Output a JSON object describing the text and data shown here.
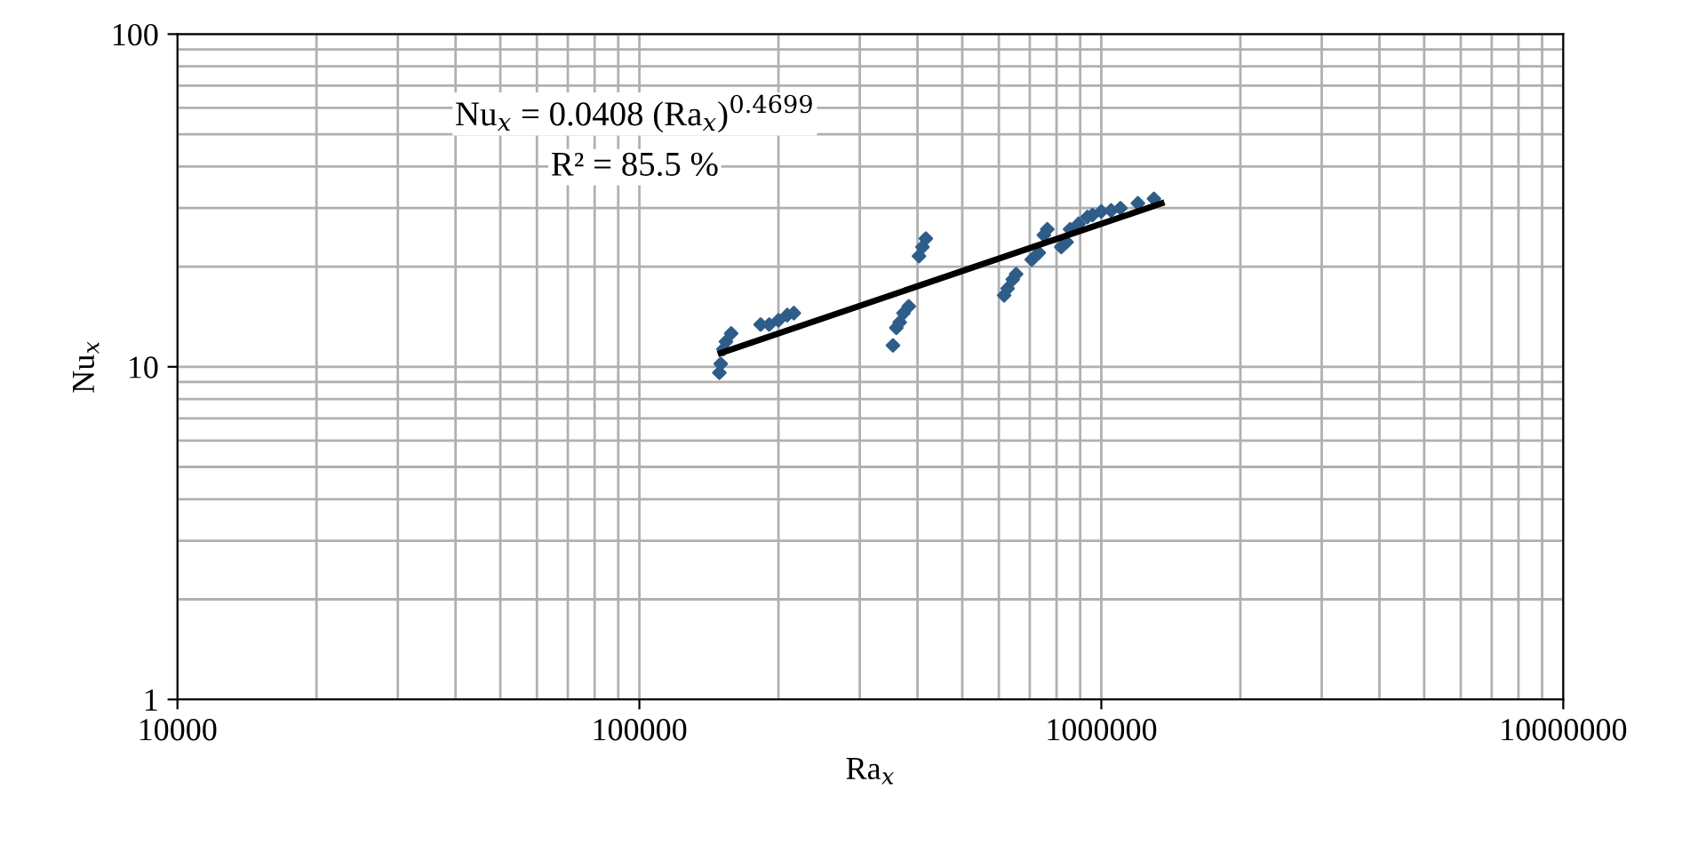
{
  "chart_data": {
    "type": "scatter",
    "xlabel": "Ra$_{x}$",
    "ylabel": "Nu$_{x}$",
    "log": "xy",
    "grid": true,
    "legend": false,
    "marker": "diamond",
    "xlim": [
      10000,
      10000000
    ],
    "xticks": [
      10000,
      100000,
      1000000,
      10000000
    ],
    "ylim": [
      1,
      100
    ],
    "yticks": [
      1,
      10,
      100
    ],
    "annotations": [
      "Nu$_{x}$ = 0.0408 (Ra$_{x}$)$^{0.4699}$",
      "R² = 85.5 %"
    ],
    "series": [
      {
        "color": "#2f5d8a",
        "x": [
          149000,
          150000,
          152000,
          154000,
          158000,
          183000,
          191000,
          200000,
          209000,
          216000,
          354000,
          360000,
          366000,
          373000,
          383000,
          403000,
          410000,
          417000,
          616000,
          627000,
          643000,
          654000,
          707000,
          732000,
          751000,
          764000,
          819000,
          841000,
          856000,
          893000,
          933000,
          957000,
          1000000,
          1050000,
          1100000,
          1200000,
          1300000
        ],
        "values": [
          9.6,
          10.2,
          11.3,
          11.9,
          12.6,
          13.4,
          13.4,
          13.8,
          14.3,
          14.5,
          11.6,
          13.1,
          13.6,
          14.5,
          15.2,
          21.5,
          22.9,
          24.3,
          16.4,
          17.2,
          18.3,
          19.0,
          21.0,
          22.0,
          24.9,
          25.9,
          22.9,
          23.7,
          25.9,
          26.9,
          28.2,
          28.6,
          29.3,
          29.5,
          30.0,
          31.0,
          32.0
        ]
      },
      {
        "type": "line",
        "color": "#000000",
        "marker": "none",
        "x": [
          150000,
          1350000
        ],
        "values": [
          11.0,
          31.0
        ]
      }
    ]
  }
}
